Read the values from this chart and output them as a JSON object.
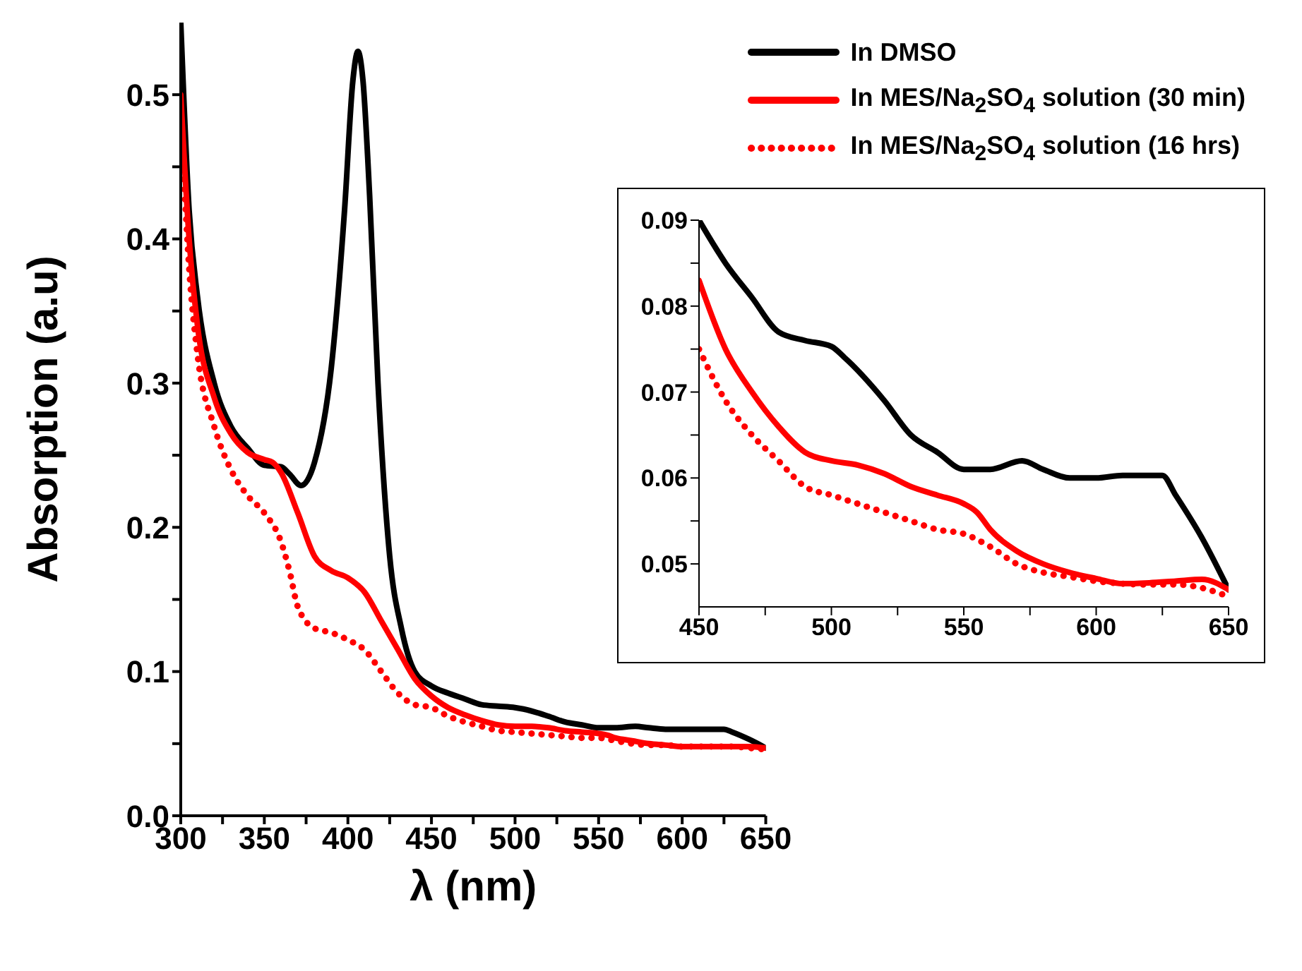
{
  "chart_data": [
    {
      "type": "line",
      "xlabel": "λ (nm)",
      "ylabel": "Absorption (a.u)",
      "xlim": [
        300,
        650
      ],
      "ylim": [
        0,
        0.55
      ],
      "xticks": [
        300,
        {
          "value": 325,
          "label": null
        },
        350,
        {
          "value": 375,
          "label": null
        },
        400,
        {
          "value": 425,
          "label": null
        },
        450,
        {
          "value": 475,
          "label": null
        },
        500,
        {
          "value": 525,
          "label": null
        },
        550,
        {
          "value": 575,
          "label": null
        },
        600,
        {
          "value": 625,
          "label": null
        },
        650
      ],
      "yticks": [
        {
          "value": 0,
          "label": "0.0"
        },
        {
          "value": 0.05,
          "label": null
        },
        0.1,
        {
          "value": 0.15,
          "label": null
        },
        0.2,
        {
          "value": 0.25,
          "label": null
        },
        0.3,
        {
          "value": 0.35,
          "label": null
        },
        0.4,
        {
          "value": 0.45,
          "label": null
        },
        0.5
      ],
      "legend": "top right",
      "series": [
        {
          "name": "In DMSO",
          "color": "#000000",
          "line_style": "solid",
          "x": [
            300,
            305,
            310,
            320,
            330,
            340,
            350,
            360,
            365,
            372,
            380,
            390,
            398,
            403,
            406,
            409,
            413,
            418,
            425,
            432,
            440,
            450,
            460,
            470,
            480,
            490,
            500,
            505,
            520,
            530,
            540,
            550,
            560,
            572,
            580,
            590,
            600,
            610,
            620,
            625,
            630,
            640,
            650
          ],
          "values": [
            0.55,
            0.42,
            0.36,
            0.3,
            0.27,
            0.255,
            0.243,
            0.242,
            0.237,
            0.229,
            0.245,
            0.31,
            0.42,
            0.51,
            0.53,
            0.51,
            0.43,
            0.3,
            0.18,
            0.13,
            0.1,
            0.09,
            0.085,
            0.081,
            0.077,
            0.076,
            0.075,
            0.074,
            0.069,
            0.065,
            0.063,
            0.061,
            0.061,
            0.062,
            0.061,
            0.06,
            0.06,
            0.06,
            0.06,
            0.06,
            0.058,
            0.053,
            0.047
          ]
        },
        {
          "name": "In MES/Na$_{2}$SO$_{4}$ solution (30 min)",
          "color": "#ff0000",
          "line_style": "solid",
          "x": [
            300,
            305,
            310,
            320,
            330,
            340,
            350,
            355,
            360,
            370,
            380,
            390,
            400,
            410,
            420,
            430,
            440,
            450,
            460,
            470,
            480,
            490,
            500,
            510,
            520,
            530,
            540,
            550,
            555,
            560,
            570,
            580,
            590,
            600,
            610,
            620,
            630,
            640,
            650
          ],
          "values": [
            0.5,
            0.4,
            0.34,
            0.29,
            0.265,
            0.252,
            0.247,
            0.245,
            0.238,
            0.21,
            0.18,
            0.17,
            0.165,
            0.155,
            0.135,
            0.115,
            0.095,
            0.083,
            0.075,
            0.07,
            0.066,
            0.063,
            0.062,
            0.062,
            0.061,
            0.059,
            0.058,
            0.057,
            0.056,
            0.054,
            0.052,
            0.05,
            0.049,
            0.048,
            0.048,
            0.048,
            0.048,
            0.048,
            0.047
          ]
        },
        {
          "name": "In MES/Na$_{2}$SO$_{4}$ solution (16 hrs)",
          "color": "#ff0000",
          "line_style": "dotted",
          "x": [
            300,
            305,
            310,
            320,
            330,
            340,
            350,
            360,
            365,
            370,
            380,
            390,
            400,
            410,
            420,
            430,
            440,
            450,
            460,
            470,
            480,
            490,
            500,
            510,
            520,
            530,
            540,
            550,
            560,
            570,
            580,
            590,
            600,
            610,
            620,
            630,
            640,
            650
          ],
          "values": [
            0.49,
            0.38,
            0.32,
            0.27,
            0.24,
            0.222,
            0.21,
            0.19,
            0.17,
            0.145,
            0.13,
            0.127,
            0.122,
            0.115,
            0.1,
            0.085,
            0.077,
            0.075,
            0.069,
            0.065,
            0.062,
            0.059,
            0.058,
            0.057,
            0.056,
            0.055,
            0.054,
            0.054,
            0.052,
            0.05,
            0.049,
            0.049,
            0.048,
            0.048,
            0.048,
            0.048,
            0.047,
            0.046
          ]
        }
      ]
    },
    {
      "type": "line",
      "xlim": [
        450,
        650
      ],
      "ylim": [
        0.045,
        0.09
      ],
      "xticks": [
        450,
        {
          "value": 475,
          "label": null
        },
        500,
        {
          "value": 525,
          "label": null
        },
        550,
        {
          "value": 575,
          "label": null
        },
        600,
        {
          "value": 625,
          "label": null
        },
        650
      ],
      "yticks": [
        0.05,
        {
          "value": 0.055,
          "label": null
        },
        0.06,
        {
          "value": 0.065,
          "label": null
        },
        0.07,
        {
          "value": 0.075,
          "label": null
        },
        0.08,
        {
          "value": 0.085,
          "label": null
        },
        0.09
      ],
      "series": [
        {
          "color": "#000000",
          "line_style": "solid",
          "x": [
            450,
            460,
            470,
            480,
            490,
            500,
            505,
            520,
            530,
            540,
            550,
            560,
            572,
            580,
            590,
            600,
            610,
            620,
            625,
            630,
            640,
            650
          ],
          "values": [
            0.09,
            0.085,
            0.081,
            0.077,
            0.076,
            0.0753,
            0.074,
            0.069,
            0.065,
            0.063,
            0.061,
            0.061,
            0.062,
            0.061,
            0.06,
            0.06,
            0.0603,
            0.0603,
            0.0603,
            0.058,
            0.053,
            0.047
          ]
        },
        {
          "color": "#ff0000",
          "line_style": "solid",
          "x": [
            450,
            460,
            470,
            480,
            490,
            500,
            510,
            520,
            530,
            540,
            550,
            555,
            560,
            570,
            580,
            590,
            600,
            610,
            620,
            630,
            640,
            650
          ],
          "values": [
            0.083,
            0.075,
            0.07,
            0.066,
            0.063,
            0.062,
            0.0615,
            0.0605,
            0.059,
            0.058,
            0.057,
            0.056,
            0.054,
            0.0515,
            0.05,
            0.049,
            0.0483,
            0.0477,
            0.0478,
            0.048,
            0.0482,
            0.047
          ]
        },
        {
          "color": "#ff0000",
          "line_style": "dotted",
          "x": [
            450,
            460,
            470,
            480,
            490,
            500,
            510,
            520,
            530,
            540,
            550,
            560,
            570,
            580,
            590,
            600,
            610,
            620,
            630,
            640,
            650
          ],
          "values": [
            0.075,
            0.069,
            0.065,
            0.062,
            0.059,
            0.058,
            0.057,
            0.056,
            0.055,
            0.054,
            0.0535,
            0.052,
            0.05,
            0.049,
            0.0485,
            0.048,
            0.0477,
            0.0476,
            0.0476,
            0.0472,
            0.0462
          ]
        }
      ]
    }
  ]
}
